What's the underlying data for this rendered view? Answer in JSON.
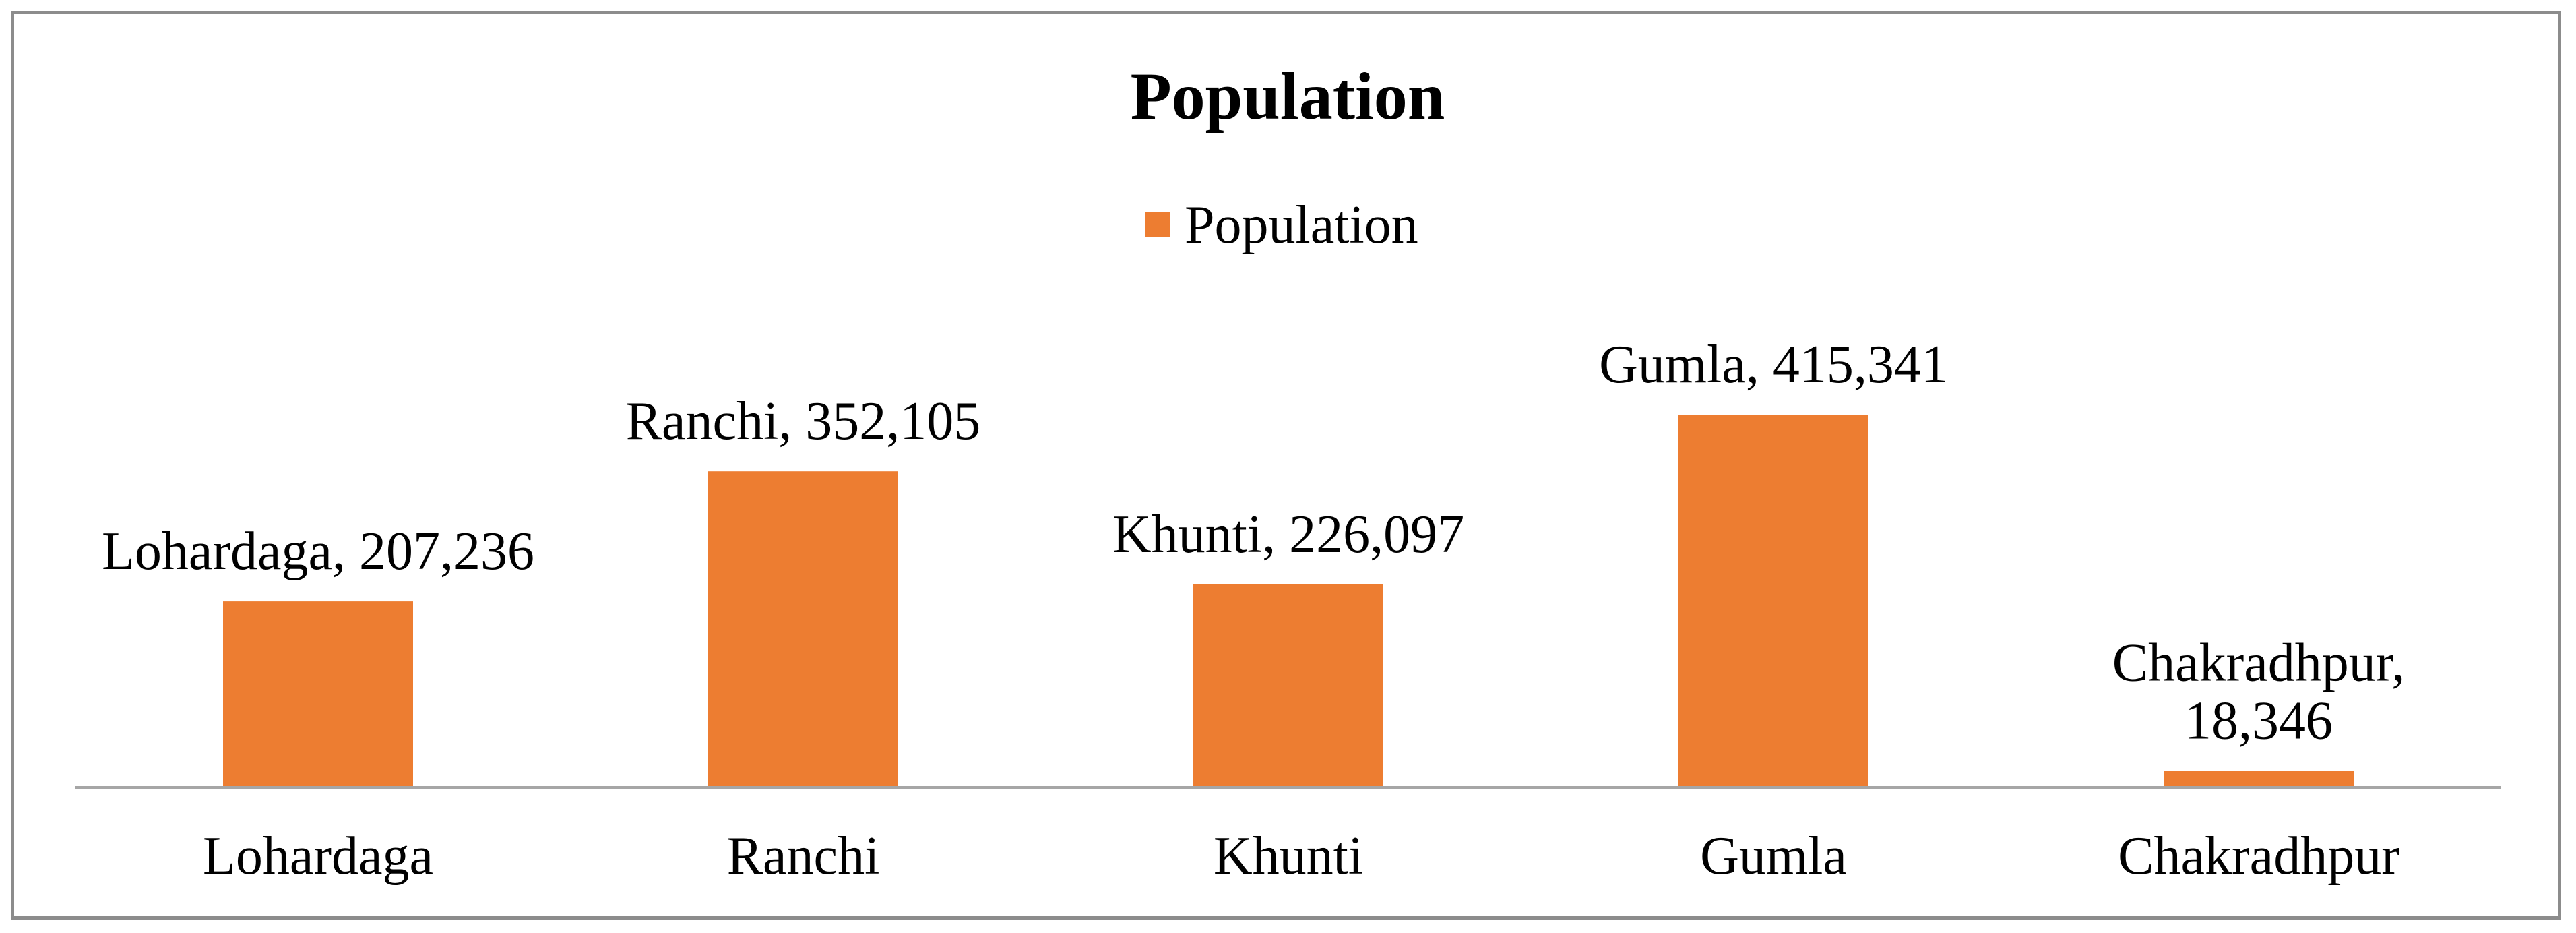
{
  "chart_data": {
    "type": "bar",
    "title": "Population",
    "xlabel": "",
    "ylabel": "",
    "categories": [
      "Lohardaga",
      "Ranchi",
      "Khunti",
      "Gumla",
      "Chakradhpur"
    ],
    "series": [
      {
        "name": "Population",
        "values": [
          207236,
          352105,
          226097,
          415341,
          18346
        ],
        "color": "#ed7d31"
      }
    ],
    "data_labels": [
      [
        "Lohardaga, 207,236"
      ],
      [
        "Ranchi, 352,105"
      ],
      [
        "Khunti, 226,097"
      ],
      [
        "Gumla, 415,341"
      ],
      [
        "Chakradhpur,",
        "18,346"
      ]
    ],
    "ylim": [
      0,
      500000
    ],
    "grid": false,
    "legend": {
      "position": "top",
      "entries": [
        "Population"
      ]
    },
    "colors": {
      "bar": "#ed7d31",
      "axis": "#a6a6a6",
      "border": "#8c8c8c",
      "text": "#000000"
    }
  }
}
